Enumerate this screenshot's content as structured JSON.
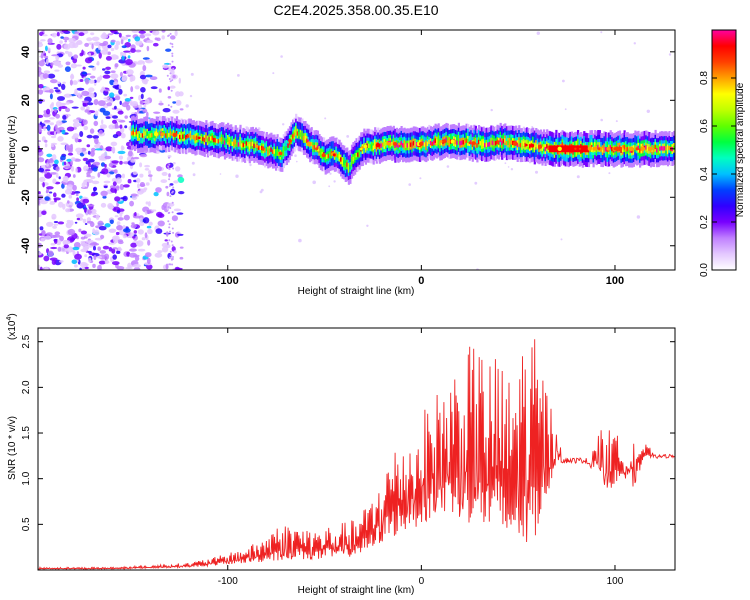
{
  "title": "C2E4.2025.358.00.35.E10",
  "chart_data": [
    {
      "type": "heatmap",
      "xlabel": "Height of straight line (km)",
      "ylabel": "Frequency (Hz)",
      "xlim": [
        -198,
        131
      ],
      "ylim": [
        -50,
        49
      ],
      "xticks": [
        -100,
        0,
        100
      ],
      "xtick_labels": [
        "-100",
        "0",
        "100"
      ],
      "yticks": [
        40,
        20,
        0,
        -20,
        -40
      ],
      "ytick_labels": [
        "40",
        "20",
        "0",
        "-20",
        "-40"
      ],
      "colorbar": {
        "label": "Normalized spectral amplitude",
        "range": [
          0,
          1
        ],
        "ticks": [
          0.0,
          0.2,
          0.4,
          0.6,
          0.8
        ],
        "tick_labels": [
          "0.0",
          "0.2",
          "0.4",
          "0.6",
          "0.8"
        ],
        "colors": [
          "#ffffff",
          "#e4c8ff",
          "#c080ff",
          "#7800ff",
          "#3000ff",
          "#0040ff",
          "#00c0ff",
          "#00ffc0",
          "#00ff40",
          "#60ff00",
          "#c0ff00",
          "#ffff00",
          "#ffa000",
          "#ff4000",
          "#ff0000",
          "#ff00a0"
        ]
      },
      "ridge": {
        "x": [
          -145,
          -130,
          -120,
          -110,
          -100,
          -92,
          -85,
          -78,
          -72,
          -68,
          -65,
          -62,
          -58,
          -54,
          -50,
          -46,
          -42,
          -38,
          -34,
          -30,
          -25,
          -20,
          -10,
          0,
          10,
          20,
          30,
          40,
          50,
          60,
          70,
          80,
          90,
          100,
          110,
          120,
          131
        ],
        "y": [
          6,
          6,
          5,
          4,
          3,
          2,
          1,
          -1,
          -2,
          3,
          7,
          5,
          2,
          0,
          -3,
          -2,
          -4,
          -8,
          -3,
          1,
          1,
          2,
          2,
          2,
          3,
          3,
          2,
          3,
          2,
          1,
          0,
          0,
          0,
          0,
          0,
          0,
          0
        ]
      }
    },
    {
      "type": "line",
      "xlabel": "Height of straight line (km)",
      "ylabel": "SNR (10 * v/v)",
      "scale_label": "(x10",
      "scale_exp": "4",
      "xlim": [
        -198,
        131
      ],
      "ylim": [
        0,
        2.65
      ],
      "xticks": [
        -100,
        0,
        100
      ],
      "xtick_labels": [
        "-100",
        "0",
        "100"
      ],
      "yticks": [
        0.5,
        1.0,
        1.5,
        2.0,
        2.5
      ],
      "ytick_labels": [
        "0.5",
        "1.0",
        "1.5",
        "2.0",
        "2.5"
      ],
      "color": "#ee2222",
      "envelope": {
        "x": [
          -198,
          -160,
          -140,
          -120,
          -105,
          -95,
          -85,
          -75,
          -65,
          -55,
          -45,
          -35,
          -25,
          -20,
          -15,
          -10,
          -5,
          0,
          5,
          10,
          15,
          20,
          25,
          30,
          35,
          40,
          45,
          50,
          55,
          60,
          65,
          70,
          75,
          80,
          85,
          90,
          95,
          100,
          105,
          110,
          115,
          120,
          131
        ],
        "base": [
          0.01,
          0.01,
          0.02,
          0.03,
          0.05,
          0.07,
          0.08,
          0.1,
          0.12,
          0.1,
          0.12,
          0.15,
          0.2,
          0.3,
          0.35,
          0.4,
          0.45,
          0.5,
          0.55,
          0.55,
          0.6,
          0.55,
          0.5,
          0.45,
          0.35,
          0.3,
          0.25,
          0.3,
          0.2,
          0.4,
          0.8,
          1.2,
          1.2,
          1.2,
          1.2,
          1.1,
          0.9,
          0.9,
          1.0,
          0.9,
          1.2,
          1.24,
          1.25
        ],
        "peak": [
          0.03,
          0.03,
          0.05,
          0.08,
          0.15,
          0.22,
          0.3,
          0.5,
          0.5,
          0.45,
          0.5,
          0.55,
          0.8,
          1.1,
          1.3,
          1.5,
          1.4,
          1.7,
          1.9,
          2.0,
          2.2,
          2.3,
          2.45,
          2.5,
          2.3,
          2.4,
          2.1,
          2.45,
          2.65,
          2.5,
          2.0,
          1.5,
          1.4,
          1.35,
          1.3,
          1.45,
          1.6,
          1.5,
          1.4,
          1.5,
          1.4,
          1.3,
          1.27
        ]
      }
    }
  ]
}
